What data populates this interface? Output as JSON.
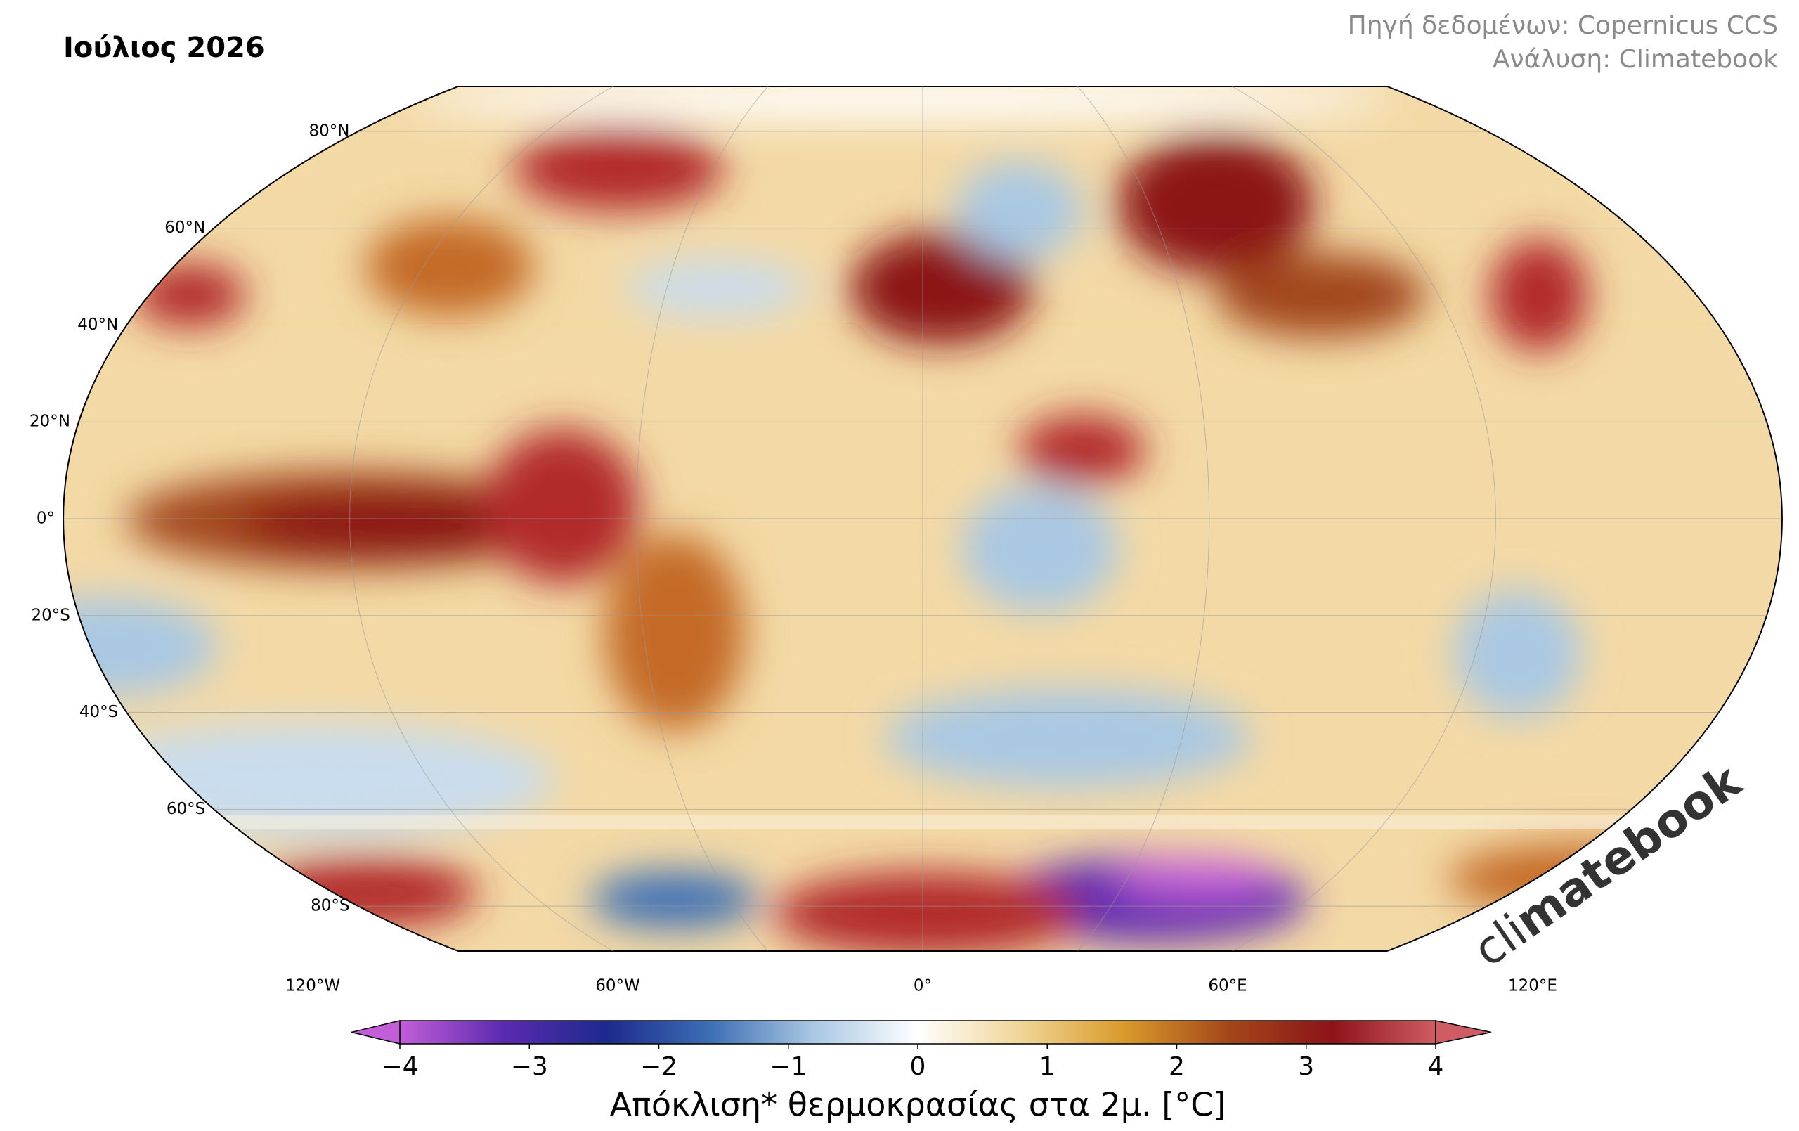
{
  "title": "Ιούλιος 2026",
  "source": [
    "Πηγή δεδομένων: Copernicus CCS",
    "Ανάλυση: Climatebook"
  ],
  "map": {
    "lat_labels": [
      {
        "value": 80,
        "label": "80°N"
      },
      {
        "value": 60,
        "label": "60°N"
      },
      {
        "value": 40,
        "label": "40°N"
      },
      {
        "value": 20,
        "label": "20°N"
      },
      {
        "value": 0,
        "label": "0°"
      },
      {
        "value": -20,
        "label": "20°S"
      },
      {
        "value": -40,
        "label": "40°S"
      },
      {
        "value": -60,
        "label": "60°S"
      },
      {
        "value": -80,
        "label": "80°S"
      }
    ],
    "lon_labels": [
      {
        "value": -120,
        "label": "120°W"
      },
      {
        "value": -60,
        "label": "60°W"
      },
      {
        "value": 0,
        "label": "0°"
      },
      {
        "value": 60,
        "label": "60°E"
      },
      {
        "value": 120,
        "label": "120°E"
      }
    ]
  },
  "colorbar": {
    "label": "Απόκλιση* θερμοκρασίας στα 2μ. [°C]",
    "lim": [
      -4,
      4
    ],
    "ticks": [
      {
        "value": -4,
        "label": "−4"
      },
      {
        "value": -3,
        "label": "−3"
      },
      {
        "value": -2,
        "label": "−2"
      },
      {
        "value": -1,
        "label": "−1"
      },
      0,
      1,
      2,
      3,
      4
    ],
    "colors": [
      "#c25ed8",
      "#5b2ab0",
      "#1c2a8c",
      "#3d6fb5",
      "#a9c8e3",
      "#ffffff",
      "#f0d596",
      "#d99a2a",
      "#a3471a",
      "#8c1419",
      "#cf5c62"
    ]
  },
  "watermark": [
    "cli",
    "matebook"
  ]
}
